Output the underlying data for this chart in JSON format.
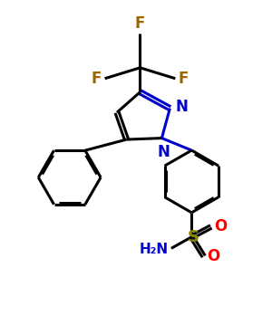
{
  "background_color": "#ffffff",
  "bond_color": "#000000",
  "nitrogen_color": "#0000cc",
  "fluorine_color": "#996600",
  "sulfur_color": "#888800",
  "oxygen_color": "#ff0000",
  "bond_width": 2.2,
  "figsize": [
    3.0,
    3.59
  ],
  "dpi": 100,
  "xlim": [
    0,
    10
  ],
  "ylim": [
    0,
    12
  ]
}
